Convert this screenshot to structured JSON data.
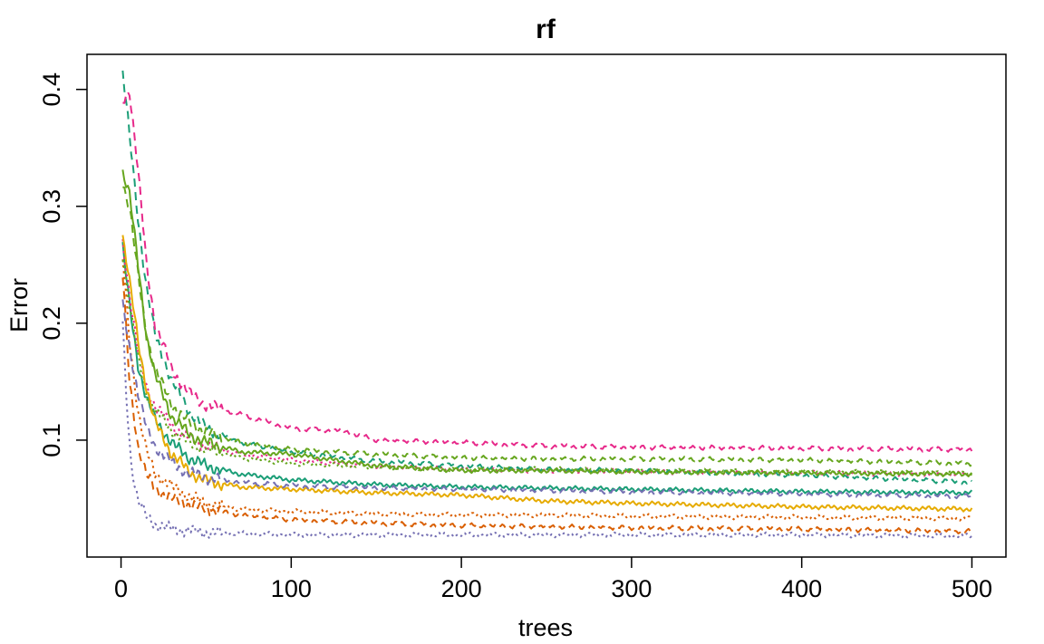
{
  "chart_data": {
    "type": "line",
    "title": "rf",
    "xlabel": "trees",
    "ylabel": "Error",
    "xlim": [
      -20,
      520
    ],
    "ylim": [
      0.0,
      0.43
    ],
    "xticks": [
      0,
      100,
      200,
      300,
      400,
      500
    ],
    "xtick_labels": [
      "0",
      "100",
      "200",
      "300",
      "400",
      "500"
    ],
    "yticks": [
      0.1,
      0.2,
      0.3,
      0.4
    ],
    "ytick_labels": [
      "0.1",
      "0.2",
      "0.3",
      "0.4"
    ],
    "grid": false,
    "legend": "none",
    "series": [
      {
        "color": "#1B9E77",
        "dash": "solid",
        "points": [
          [
            1,
            0.265
          ],
          [
            5,
            0.215
          ],
          [
            10,
            0.165
          ],
          [
            15,
            0.135
          ],
          [
            20,
            0.118
          ],
          [
            30,
            0.097
          ],
          [
            40,
            0.085
          ],
          [
            50,
            0.078
          ],
          [
            70,
            0.071
          ],
          [
            100,
            0.066
          ],
          [
            150,
            0.062
          ],
          [
            200,
            0.06
          ],
          [
            250,
            0.059
          ],
          [
            300,
            0.058
          ],
          [
            400,
            0.056
          ],
          [
            500,
            0.055
          ]
        ]
      },
      {
        "color": "#D95F02",
        "dash": "dotted",
        "points": [
          [
            1,
            0.255
          ],
          [
            5,
            0.185
          ],
          [
            10,
            0.125
          ],
          [
            15,
            0.09
          ],
          [
            20,
            0.072
          ],
          [
            30,
            0.06
          ],
          [
            40,
            0.052
          ],
          [
            50,
            0.046
          ],
          [
            70,
            0.041
          ],
          [
            100,
            0.039
          ],
          [
            150,
            0.037
          ],
          [
            200,
            0.036
          ],
          [
            250,
            0.036
          ],
          [
            300,
            0.035
          ],
          [
            400,
            0.034
          ],
          [
            500,
            0.033
          ]
        ]
      },
      {
        "color": "#7570B3",
        "dash": "dotted",
        "points": [
          [
            1,
            0.2
          ],
          [
            3,
            0.14
          ],
          [
            6,
            0.08
          ],
          [
            10,
            0.048
          ],
          [
            15,
            0.035
          ],
          [
            20,
            0.028
          ],
          [
            30,
            0.024
          ],
          [
            50,
            0.021
          ],
          [
            100,
            0.019
          ],
          [
            200,
            0.019
          ],
          [
            300,
            0.019
          ],
          [
            400,
            0.019
          ],
          [
            500,
            0.018
          ]
        ]
      },
      {
        "color": "#E7298A",
        "dash": "dotted",
        "points": [
          [
            1,
            0.27
          ],
          [
            5,
            0.225
          ],
          [
            10,
            0.175
          ],
          [
            15,
            0.145
          ],
          [
            20,
            0.13
          ],
          [
            30,
            0.112
          ],
          [
            40,
            0.102
          ],
          [
            50,
            0.095
          ],
          [
            70,
            0.088
          ],
          [
            100,
            0.083
          ],
          [
            150,
            0.078
          ],
          [
            200,
            0.075
          ],
          [
            250,
            0.074
          ],
          [
            300,
            0.073
          ],
          [
            400,
            0.072
          ],
          [
            500,
            0.071
          ]
        ]
      },
      {
        "color": "#66A61E",
        "dash": "dotted",
        "points": [
          [
            1,
            0.26
          ],
          [
            5,
            0.215
          ],
          [
            10,
            0.17
          ],
          [
            15,
            0.14
          ],
          [
            20,
            0.125
          ],
          [
            30,
            0.108
          ],
          [
            40,
            0.098
          ],
          [
            50,
            0.092
          ],
          [
            70,
            0.085
          ],
          [
            100,
            0.08
          ],
          [
            150,
            0.077
          ],
          [
            200,
            0.075
          ],
          [
            250,
            0.075
          ],
          [
            300,
            0.074
          ],
          [
            400,
            0.073
          ],
          [
            500,
            0.072
          ]
        ]
      },
      {
        "color": "#E6AB02",
        "dash": "solid",
        "points": [
          [
            1,
            0.275
          ],
          [
            5,
            0.235
          ],
          [
            10,
            0.185
          ],
          [
            15,
            0.145
          ],
          [
            20,
            0.115
          ],
          [
            30,
            0.088
          ],
          [
            40,
            0.073
          ],
          [
            50,
            0.065
          ],
          [
            70,
            0.06
          ],
          [
            100,
            0.058
          ],
          [
            150,
            0.055
          ],
          [
            200,
            0.053
          ],
          [
            250,
            0.048
          ],
          [
            300,
            0.046
          ],
          [
            400,
            0.043
          ],
          [
            500,
            0.041
          ]
        ]
      },
      {
        "color": "#1B9E77",
        "dash": "dashed",
        "points": [
          [
            1,
            0.415
          ],
          [
            5,
            0.36
          ],
          [
            10,
            0.29
          ],
          [
            15,
            0.23
          ],
          [
            20,
            0.19
          ],
          [
            30,
            0.15
          ],
          [
            40,
            0.125
          ],
          [
            50,
            0.11
          ],
          [
            70,
            0.098
          ],
          [
            100,
            0.09
          ],
          [
            150,
            0.082
          ],
          [
            200,
            0.078
          ],
          [
            250,
            0.075
          ],
          [
            300,
            0.074
          ],
          [
            400,
            0.07
          ],
          [
            500,
            0.064
          ]
        ]
      },
      {
        "color": "#D95F02",
        "dash": "dashed",
        "points": [
          [
            1,
            0.24
          ],
          [
            5,
            0.15
          ],
          [
            10,
            0.095
          ],
          [
            15,
            0.07
          ],
          [
            20,
            0.058
          ],
          [
            30,
            0.05
          ],
          [
            40,
            0.045
          ],
          [
            50,
            0.041
          ],
          [
            70,
            0.036
          ],
          [
            100,
            0.032
          ],
          [
            150,
            0.029
          ],
          [
            200,
            0.027
          ],
          [
            250,
            0.026
          ],
          [
            300,
            0.025
          ],
          [
            400,
            0.024
          ],
          [
            500,
            0.022
          ]
        ]
      },
      {
        "color": "#7570B3",
        "dash": "dashed",
        "points": [
          [
            1,
            0.215
          ],
          [
            5,
            0.18
          ],
          [
            10,
            0.14
          ],
          [
            15,
            0.11
          ],
          [
            20,
            0.095
          ],
          [
            30,
            0.08
          ],
          [
            40,
            0.072
          ],
          [
            50,
            0.068
          ],
          [
            70,
            0.064
          ],
          [
            100,
            0.061
          ],
          [
            150,
            0.059
          ],
          [
            200,
            0.058
          ],
          [
            250,
            0.057
          ],
          [
            300,
            0.056
          ],
          [
            400,
            0.054
          ],
          [
            500,
            0.052
          ]
        ]
      },
      {
        "color": "#E7298A",
        "dash": "dashed",
        "points": [
          [
            1,
            0.39
          ],
          [
            5,
            0.4
          ],
          [
            10,
            0.33
          ],
          [
            15,
            0.25
          ],
          [
            20,
            0.2
          ],
          [
            30,
            0.16
          ],
          [
            40,
            0.14
          ],
          [
            50,
            0.13
          ],
          [
            70,
            0.122
          ],
          [
            100,
            0.11
          ],
          [
            130,
            0.108
          ],
          [
            150,
            0.1
          ],
          [
            200,
            0.098
          ],
          [
            250,
            0.095
          ],
          [
            300,
            0.094
          ],
          [
            400,
            0.093
          ],
          [
            500,
            0.092
          ]
        ]
      },
      {
        "color": "#66A61E",
        "dash": "dashed",
        "points": [
          [
            1,
            0.32
          ],
          [
            5,
            0.3
          ],
          [
            10,
            0.24
          ],
          [
            15,
            0.19
          ],
          [
            20,
            0.16
          ],
          [
            30,
            0.13
          ],
          [
            40,
            0.115
          ],
          [
            50,
            0.107
          ],
          [
            70,
            0.098
          ],
          [
            100,
            0.092
          ],
          [
            150,
            0.088
          ],
          [
            200,
            0.085
          ],
          [
            250,
            0.084
          ],
          [
            300,
            0.084
          ],
          [
            400,
            0.083
          ],
          [
            500,
            0.08
          ]
        ]
      },
      {
        "color": "#66A61E",
        "dash": "solid",
        "points": [
          [
            1,
            0.33
          ],
          [
            5,
            0.31
          ],
          [
            10,
            0.25
          ],
          [
            15,
            0.19
          ],
          [
            20,
            0.155
          ],
          [
            30,
            0.12
          ],
          [
            40,
            0.105
          ],
          [
            50,
            0.098
          ],
          [
            70,
            0.09
          ],
          [
            100,
            0.088
          ],
          [
            150,
            0.078
          ],
          [
            200,
            0.074
          ],
          [
            250,
            0.074
          ],
          [
            300,
            0.073
          ],
          [
            400,
            0.072
          ],
          [
            500,
            0.071
          ]
        ]
      }
    ]
  }
}
